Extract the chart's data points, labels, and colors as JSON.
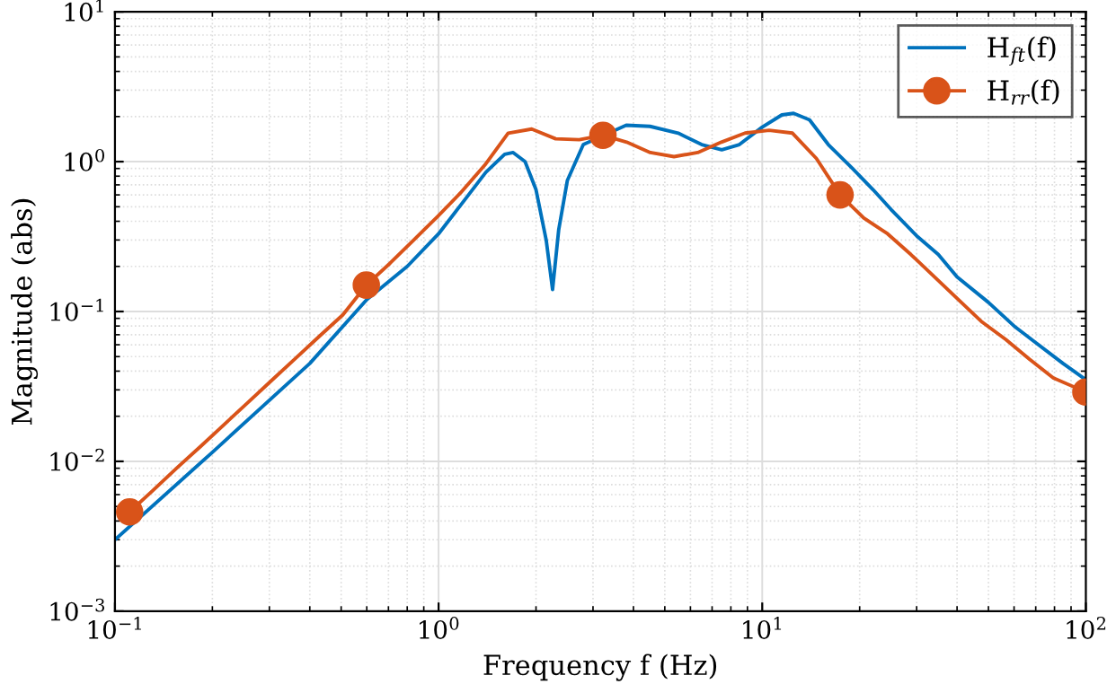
{
  "chart_data": {
    "type": "line",
    "xlabel": "Frequency f (Hz)",
    "ylabel": "Magnitude (abs)",
    "log": "xy",
    "grid": true,
    "legend": "top right",
    "xlim": [
      0.1,
      100
    ],
    "ylim": [
      0.001,
      10
    ],
    "xticks": [
      {
        "value": 0.1,
        "label": "10$^{−1}$"
      },
      {
        "value": 1,
        "label": "10$^{0}$"
      },
      {
        "value": 10,
        "label": "10$^{1}$"
      },
      {
        "value": 100,
        "label": "10$^{2}$"
      }
    ],
    "yticks": [
      {
        "value": 0.001,
        "label": "10$^{−3}$"
      },
      {
        "value": 0.01,
        "label": "10$^{−2}$"
      },
      {
        "value": 0.1,
        "label": "10$^{−1}$"
      },
      {
        "value": 1,
        "label": "10$^{0}$"
      },
      {
        "value": 10,
        "label": "10$^{1}$"
      }
    ],
    "series": [
      {
        "name": "H$_{ft}$(f)",
        "color": "#0072bd",
        "marker": "none",
        "x": [
          0.1,
          0.2,
          0.4,
          0.6,
          0.8,
          1.0,
          1.2,
          1.4,
          1.6,
          1.7,
          1.85,
          2.0,
          2.15,
          2.25,
          2.35,
          2.5,
          2.8,
          3.8,
          4.5,
          5.5,
          6.5,
          7.5,
          8.5,
          10,
          11.5,
          12.5,
          14,
          16,
          19,
          22,
          25,
          30,
          35,
          40,
          50,
          60,
          70,
          85,
          100
        ],
        "values": [
          0.003,
          0.0115,
          0.045,
          0.12,
          0.2,
          0.33,
          0.55,
          0.85,
          1.12,
          1.15,
          1.0,
          0.65,
          0.3,
          0.14,
          0.35,
          0.75,
          1.3,
          1.75,
          1.72,
          1.55,
          1.3,
          1.2,
          1.3,
          1.7,
          2.05,
          2.1,
          1.9,
          1.3,
          0.9,
          0.65,
          0.48,
          0.32,
          0.24,
          0.17,
          0.115,
          0.08,
          0.062,
          0.045,
          0.035
        ]
      },
      {
        "name": "H$_{rr}$(f)",
        "color": "#d95319",
        "marker": "none",
        "x": [
          0.111,
          0.131,
          0.155,
          0.184,
          0.218,
          0.258,
          0.305,
          0.361,
          0.427,
          0.506,
          0.598,
          0.708,
          0.838,
          0.992,
          1.17,
          1.39,
          1.64,
          1.94,
          2.3,
          2.72,
          3.22,
          3.81,
          4.51,
          5.34,
          6.32,
          7.48,
          8.85,
          10.5,
          12.4,
          14.7,
          17.4,
          20.6,
          24.4,
          28.8,
          34.1,
          40.4,
          47.8,
          56.6,
          67.0,
          79.3,
          100
        ],
        "values": [
          0.0046,
          0.0064,
          0.009,
          0.0126,
          0.0177,
          0.0248,
          0.0347,
          0.0486,
          0.068,
          0.095,
          0.15,
          0.21,
          0.3,
          0.43,
          0.62,
          0.95,
          1.55,
          1.65,
          1.42,
          1.4,
          1.5,
          1.35,
          1.15,
          1.08,
          1.15,
          1.35,
          1.55,
          1.62,
          1.55,
          1.05,
          0.6,
          0.42,
          0.33,
          0.24,
          0.17,
          0.12,
          0.085,
          0.065,
          0.048,
          0.036,
          0.029
        ]
      },
      {
        "type": "scatter",
        "color": "#d95319",
        "marker": "circle",
        "x": [
          0.111,
          0.598,
          3.22,
          17.4,
          100
        ],
        "values": [
          0.0046,
          0.15,
          1.5,
          0.6,
          0.029
        ]
      }
    ]
  }
}
